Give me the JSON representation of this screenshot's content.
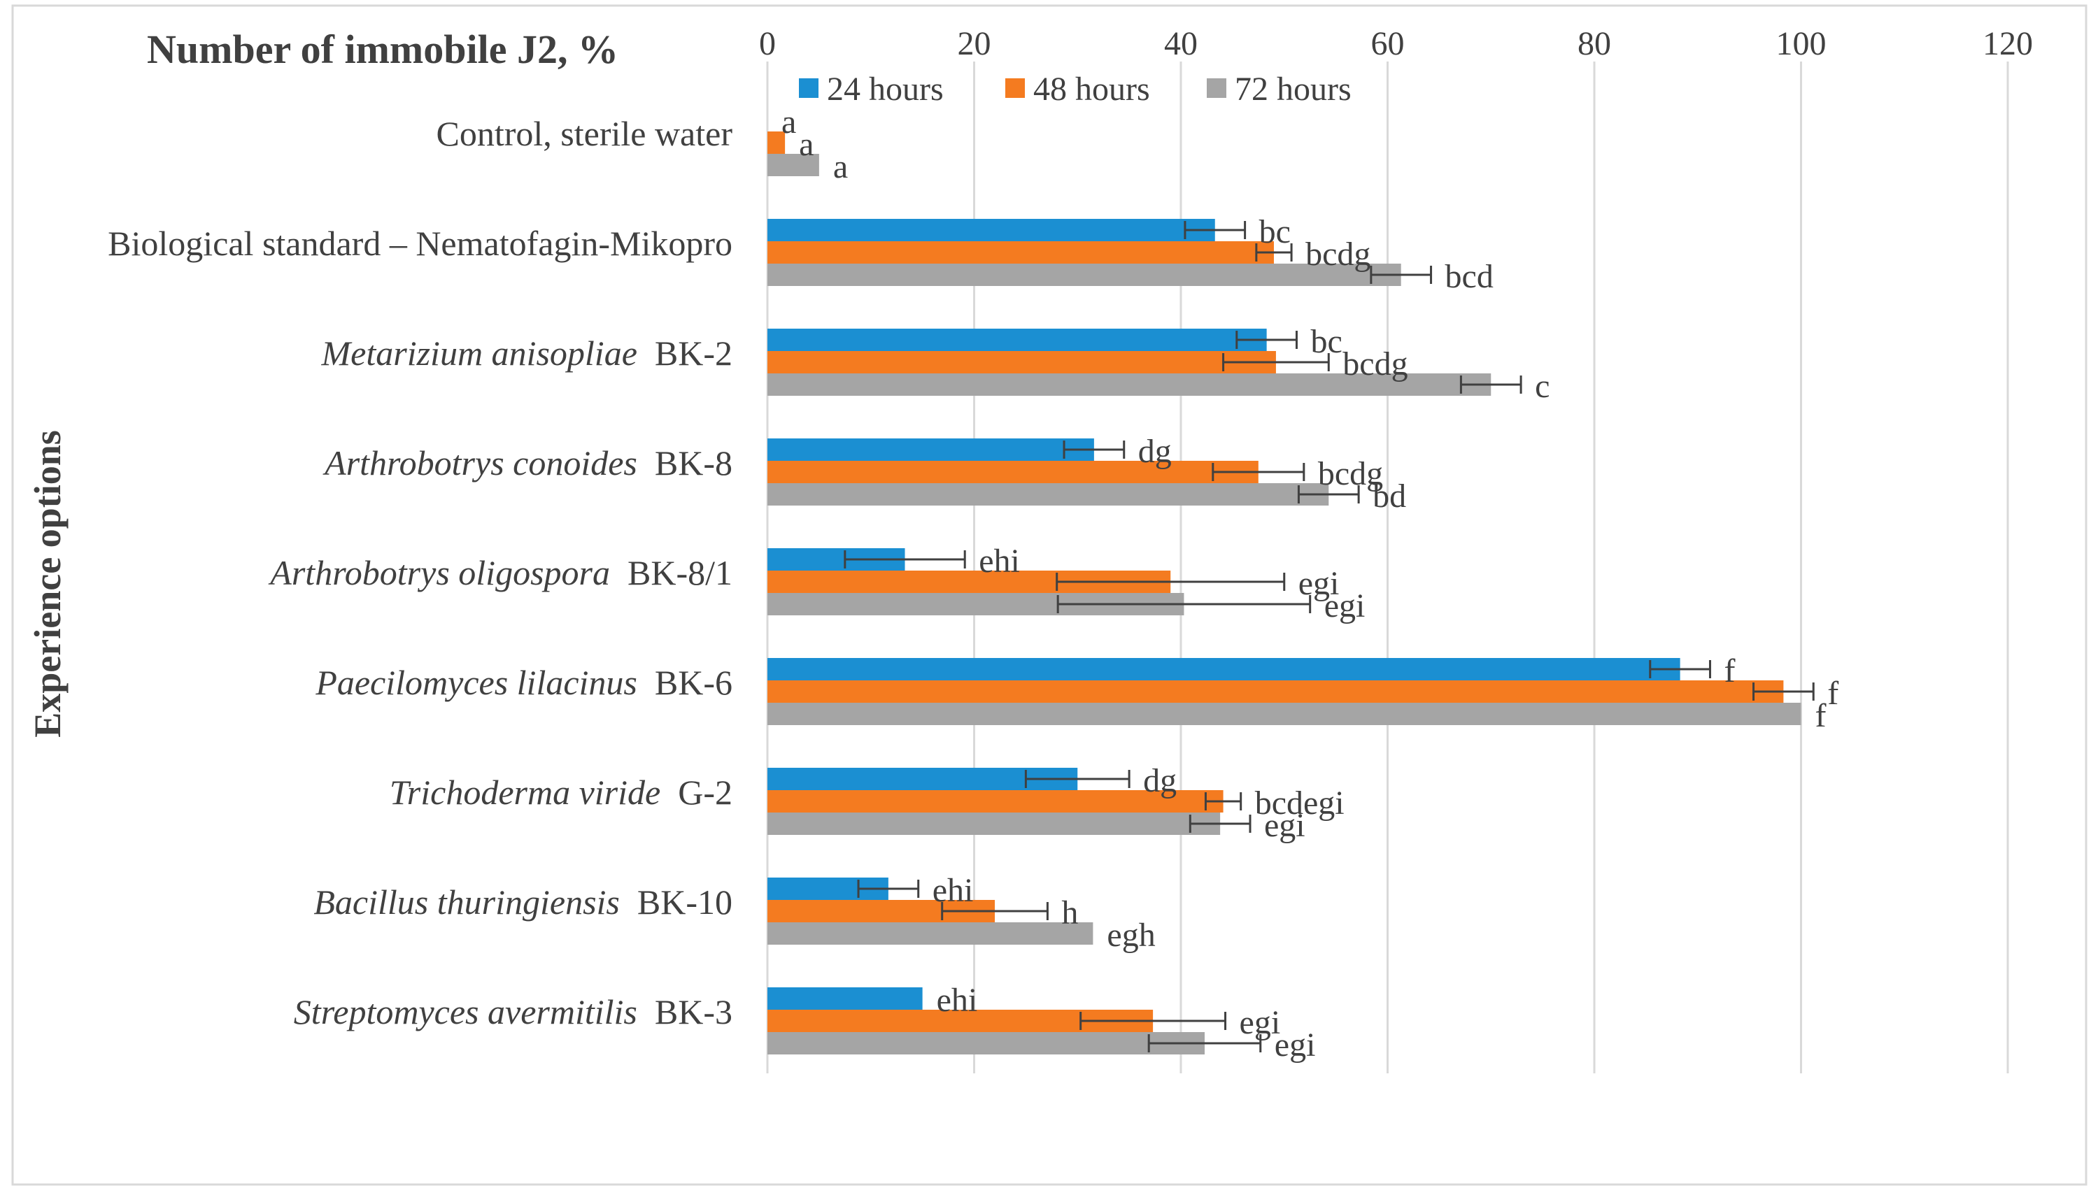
{
  "chart_data": {
    "type": "bar",
    "orientation": "horizontal",
    "title": "Number of immobile J2, %",
    "xlabel": "",
    "ylabel": "Experience options",
    "xlim": [
      0,
      120
    ],
    "x_ticks": [
      "0",
      "20",
      "40",
      "60",
      "80",
      "100",
      "120"
    ],
    "grid": "vertical",
    "legend_position": "top",
    "colors": {
      "24 hours": "#1b8fd2",
      "48 hours": "#f47b20",
      "72 hours": "#a5a5a5"
    },
    "categories": [
      {
        "italic": "",
        "plain": "Control, sterile water"
      },
      {
        "italic": "",
        "plain": "Biological standard – Nematofagin-Mikopro"
      },
      {
        "italic": "Metarizium anisopliae",
        "plain": "BK-2"
      },
      {
        "italic": "Arthrobotrys conoides",
        "plain": "BK-8"
      },
      {
        "italic": "Arthrobotrys oligospora",
        "plain": "BK-8/1"
      },
      {
        "italic": "Paecilomyces lilacinus",
        "plain": "BK-6"
      },
      {
        "italic": "Trichoderma viride",
        "plain": "G-2"
      },
      {
        "italic": "Bacillus thuringiensis",
        "plain": "BK-10"
      },
      {
        "italic": "Streptomyces avermitilis",
        "plain": "BK-3"
      }
    ],
    "series": [
      {
        "name": "24 hours",
        "values": [
          0,
          43.3,
          48.3,
          31.6,
          13.3,
          88.3,
          30.0,
          11.7,
          15.0
        ],
        "errors": [
          0,
          2.9,
          2.9,
          2.9,
          5.8,
          2.9,
          5.0,
          2.9,
          0
        ],
        "labels": [
          "a",
          "bc",
          "bc",
          "dg",
          "ehi",
          "f",
          "dg",
          "ehi",
          "ehi"
        ]
      },
      {
        "name": "48 hours",
        "values": [
          1.7,
          49.0,
          49.2,
          47.5,
          39.0,
          98.3,
          44.1,
          22.0,
          37.3
        ],
        "errors": [
          0,
          1.7,
          5.1,
          4.4,
          11.0,
          2.9,
          1.7,
          5.1,
          7.0
        ],
        "labels": [
          "a",
          "bcdg",
          "bcdg",
          "bcdg",
          "egi",
          "f",
          "bcdegi",
          "h",
          "egi"
        ]
      },
      {
        "name": "72 hours",
        "values": [
          5.0,
          61.3,
          70.0,
          54.3,
          40.3,
          100,
          43.8,
          31.5,
          42.3
        ],
        "errors": [
          0,
          2.9,
          2.9,
          2.9,
          12.2,
          0,
          2.9,
          0,
          5.4
        ],
        "labels": [
          "a",
          "bcd",
          "c",
          "bd",
          "egi",
          "f",
          "egi",
          "egh",
          "egi"
        ]
      }
    ]
  }
}
